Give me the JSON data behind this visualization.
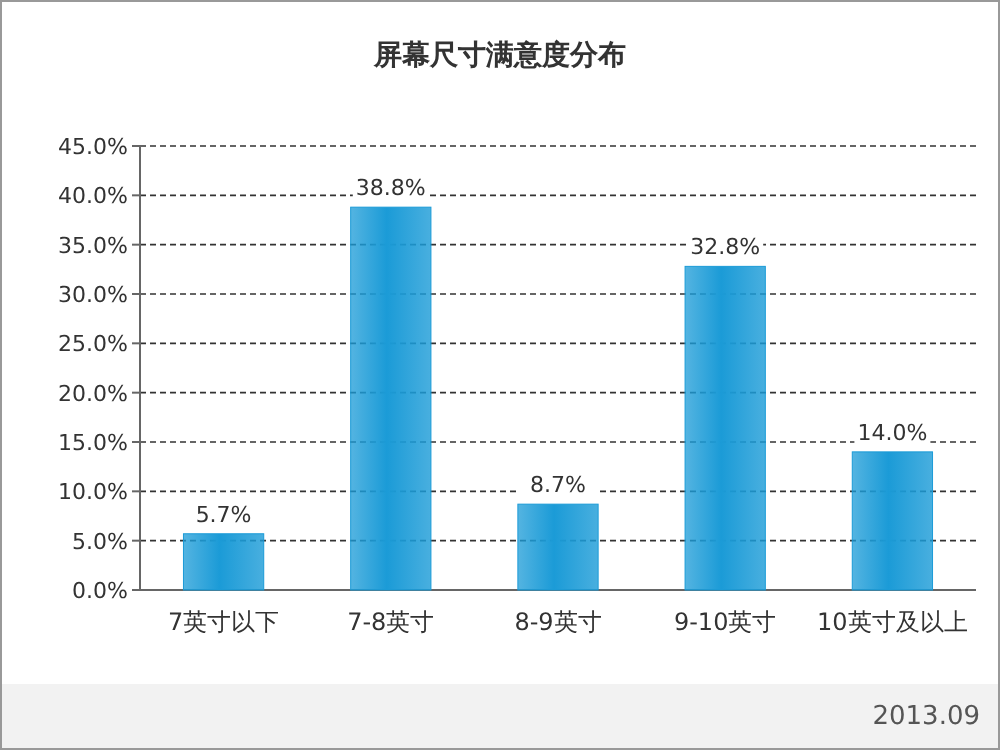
{
  "chart_data": {
    "type": "bar",
    "title": "屏幕尺寸满意度分布",
    "categories": [
      "7英寸以下",
      "7-8英寸",
      "8-9英寸",
      "9-10英寸",
      "10英寸及以上"
    ],
    "values": [
      5.7,
      38.8,
      8.7,
      32.8,
      14.0
    ],
    "value_labels": [
      "5.7%",
      "38.8%",
      "8.7%",
      "32.8%",
      "14.0%"
    ],
    "color": "#1b9bd7",
    "ylim": [
      0,
      45
    ],
    "yticks": [
      {
        "value": 0,
        "label": "0.0%"
      },
      {
        "value": 5,
        "label": "5.0%"
      },
      {
        "value": 10,
        "label": "10.0%"
      },
      {
        "value": 15,
        "label": "15.0%"
      },
      {
        "value": 20,
        "label": "20.0%"
      },
      {
        "value": 25,
        "label": "25.0%"
      },
      {
        "value": 30,
        "label": "30.0%"
      },
      {
        "value": 35,
        "label": "35.0%"
      },
      {
        "value": 40,
        "label": "40.0%"
      },
      {
        "value": 45,
        "label": "45.0%"
      }
    ],
    "grid": "y",
    "annotations": [
      "2013.09"
    ]
  }
}
